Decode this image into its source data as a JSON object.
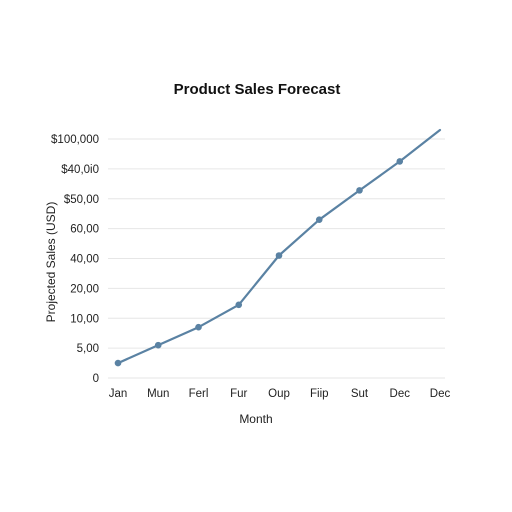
{
  "chart_data": {
    "type": "line",
    "title": "Product Sales Forecast",
    "xlabel": "Month",
    "ylabel": "Projected Sales (USD)",
    "categories": [
      "Jan",
      "Mun",
      "Ferl",
      "Fur",
      "Oup",
      "Fiip",
      "Sut",
      "Dec",
      "Dec"
    ],
    "y_tick_labels": [
      "0",
      "5,00",
      "10,00",
      "20,00",
      "40,00",
      "60,00",
      "$50,00",
      "$40,0i0",
      "$100,000"
    ],
    "series": [
      {
        "values": [
          0.5,
          1.1,
          1.7,
          2.45,
          4.1,
          5.3,
          6.28,
          7.25,
          8.3
        ]
      }
    ],
    "y_value_note": "values are in tick-position units (0 = first tick '0', 8 = top tick '$100,000')",
    "ylim": [
      0,
      8.4
    ],
    "grid": true,
    "legend": "none",
    "colors": {
      "series": "#5a82a3",
      "grid": "#e6e6e6"
    }
  }
}
